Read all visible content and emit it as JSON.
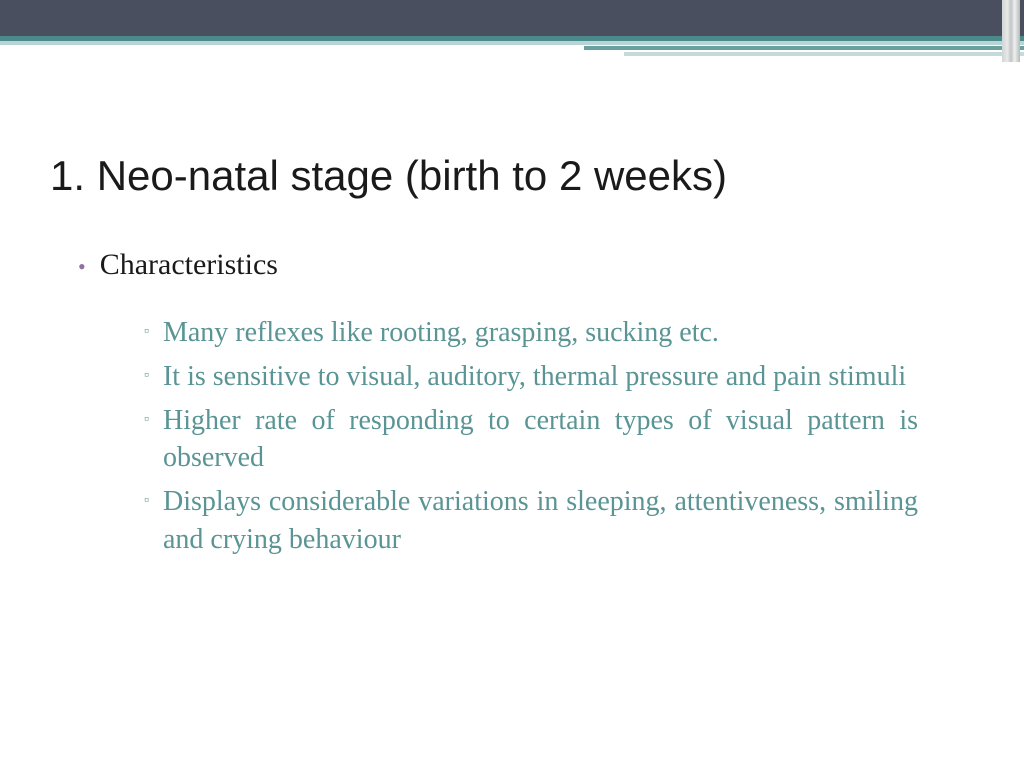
{
  "slide": {
    "title": "1. Neo-natal stage (birth to 2 weeks)",
    "main_bullet": "Characteristics",
    "sub_bullets": [
      "Many reflexes like rooting, grasping, sucking etc.",
      "It is sensitive to visual, auditory, thermal pressure and pain stimuli",
      "Higher rate of responding to certain types of visual pattern is observed",
      "Displays considerable variations in sleeping, attentiveness, smiling and crying behaviour"
    ]
  },
  "style": {
    "type": "presentation-slide",
    "background_color": "#ffffff",
    "top_bar_color": "#4a4f5f",
    "accent_colors": [
      "#4a8a8a",
      "#b8d4d4",
      "#6aa0a0",
      "#c5dada"
    ],
    "title_font": "Arial",
    "title_fontsize": 42,
    "title_color": "#1a1a1a",
    "body_font": "Georgia",
    "main_bullet_marker_color": "#9070a0",
    "main_bullet_fontsize": 30,
    "main_bullet_text_color": "#1a1a1a",
    "sub_bullet_text_color": "#5a9494",
    "sub_bullet_fontsize": 28,
    "sub_bullet_marker": "▫",
    "main_bullet_marker": "•"
  }
}
